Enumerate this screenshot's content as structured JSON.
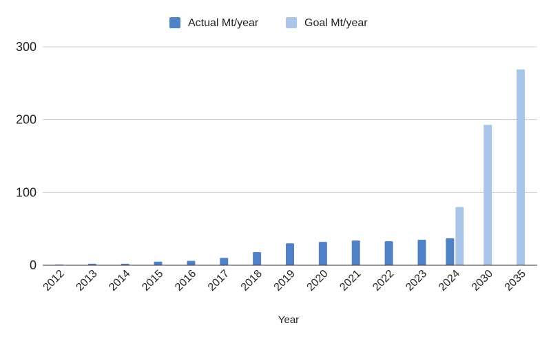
{
  "chart_data": {
    "type": "bar",
    "categories": [
      "2012",
      "2013",
      "2014",
      "2015",
      "2016",
      "2017",
      "2018",
      "2019",
      "2020",
      "2021",
      "2022",
      "2023",
      "2024",
      "2030",
      "2035"
    ],
    "series": [
      {
        "name": "Actual Mt/year",
        "color": "#4f81c7",
        "values": [
          1,
          2,
          2,
          5,
          6,
          10,
          18,
          30,
          32,
          34,
          33,
          35,
          37,
          null,
          null
        ]
      },
      {
        "name": "Goal Mt/year",
        "color": "#a9c5ea",
        "values": [
          null,
          null,
          null,
          null,
          null,
          null,
          null,
          null,
          null,
          null,
          null,
          null,
          80,
          193,
          269
        ]
      }
    ],
    "title": "",
    "xlabel": "Year",
    "ylabel": "",
    "ylim": [
      0,
      300
    ],
    "yticks": [
      0,
      100,
      200,
      300
    ],
    "grid": true,
    "legend_position": "top-center"
  }
}
